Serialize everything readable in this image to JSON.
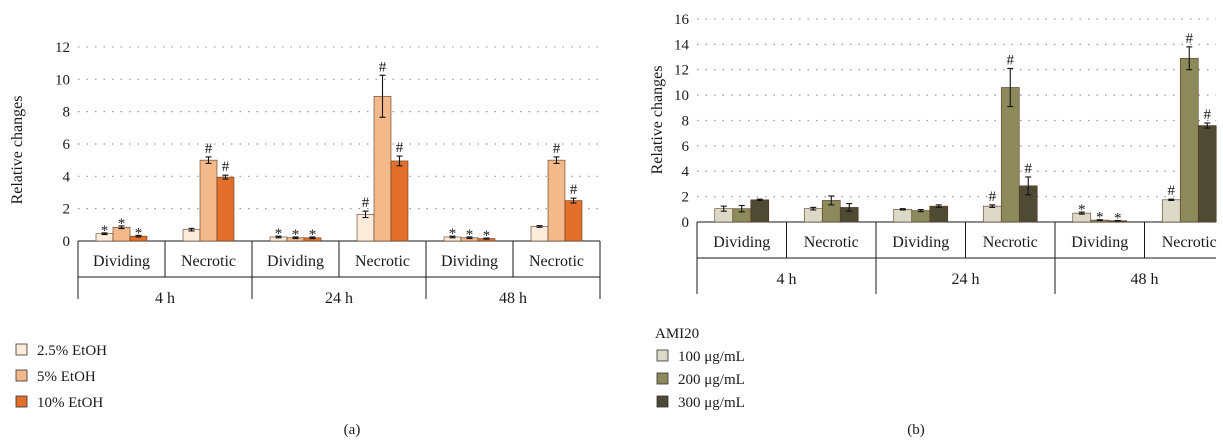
{
  "chart_data": [
    {
      "panel": "(a)",
      "type": "bar",
      "xlabel": "",
      "ylabel": "Relative changes",
      "ylim": [
        0,
        12
      ],
      "yticks": [
        0,
        2,
        4,
        6,
        8,
        10,
        12
      ],
      "grid": "dotted horizontal",
      "legend_placement": "bottom-left",
      "time_groups": [
        "4 h",
        "24 h",
        "48 h"
      ],
      "categories": [
        "Dividing",
        "Necrotic",
        "Dividing",
        "Necrotic",
        "Dividing",
        "Necrotic"
      ],
      "legend_title": "",
      "series": [
        {
          "name": "2.5% EtOH",
          "color": "#fdebdc",
          "values": [
            0.45,
            0.7,
            0.25,
            1.65,
            0.25,
            0.9
          ],
          "errors": [
            0.05,
            0.08,
            0.05,
            0.2,
            0.05,
            0.05
          ],
          "marks": [
            "*",
            "",
            "*",
            "#",
            "*",
            ""
          ]
        },
        {
          "name": "5% EtOH",
          "color": "#f3b98a",
          "values": [
            0.85,
            5.0,
            0.2,
            8.95,
            0.2,
            5.0
          ],
          "errors": [
            0.08,
            0.2,
            0.05,
            1.3,
            0.05,
            0.2
          ],
          "marks": [
            "*",
            "#",
            "*",
            "#",
            "*",
            "#"
          ]
        },
        {
          "name": "10% EtOH",
          "color": "#e2702c",
          "values": [
            0.3,
            3.95,
            0.2,
            4.95,
            0.15,
            2.5
          ],
          "errors": [
            0.05,
            0.12,
            0.05,
            0.3,
            0.03,
            0.15
          ],
          "marks": [
            "*",
            "#",
            "*",
            "#",
            "*",
            "#"
          ]
        }
      ]
    },
    {
      "panel": "(b)",
      "type": "bar",
      "xlabel": "",
      "ylabel": "Relative changes",
      "ylim": [
        0,
        16
      ],
      "yticks": [
        0,
        2,
        4,
        6,
        8,
        10,
        12,
        14,
        16
      ],
      "grid": "dotted horizontal",
      "legend_placement": "bottom-left",
      "time_groups": [
        "4 h",
        "24 h",
        "48 h"
      ],
      "categories": [
        "Dividing",
        "Necrotic",
        "Dividing",
        "Necrotic",
        "Dividing",
        "Necrotic"
      ],
      "legend_title": "AMI20",
      "series": [
        {
          "name": "100 μg/mL",
          "color": "#dcd9c7",
          "values": [
            1.05,
            1.05,
            1.0,
            1.25,
            0.7,
            1.75
          ],
          "errors": [
            0.2,
            0.1,
            0.05,
            0.1,
            0.08,
            0.05
          ],
          "marks": [
            "",
            "",
            "",
            "#",
            "*",
            "#"
          ]
        },
        {
          "name": "200 μg/mL",
          "color": "#8c8a5a",
          "values": [
            1.05,
            1.7,
            0.9,
            10.6,
            0.15,
            12.9
          ],
          "errors": [
            0.25,
            0.35,
            0.08,
            1.5,
            0.03,
            0.9
          ],
          "marks": [
            "",
            "",
            "",
            "#",
            "*",
            "#"
          ]
        },
        {
          "name": "300 μg/mL",
          "color": "#4e4a33",
          "values": [
            1.75,
            1.15,
            1.25,
            2.85,
            0.1,
            7.6
          ],
          "errors": [
            0.05,
            0.3,
            0.1,
            0.7,
            0.02,
            0.2
          ],
          "marks": [
            "",
            "",
            "",
            "#",
            "*",
            "#"
          ]
        }
      ]
    }
  ]
}
